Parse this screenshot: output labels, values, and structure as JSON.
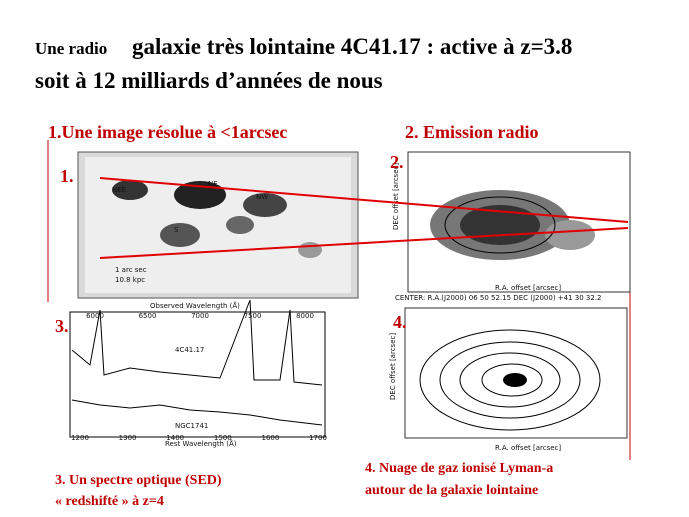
{
  "title": {
    "small": "Une radio",
    "main": "galaxie très lointaine 4C41.17 : active à z=3.8",
    "line2": "soit à 12 milliards d’années de nous"
  },
  "panels": [
    {
      "heading": "1.Une image résolue à <1arcsec",
      "label": "1.",
      "image_labels": [
        "NEE",
        "NE",
        "NW",
        "S",
        "1 arc sec",
        "10.8 kpc"
      ]
    },
    {
      "heading": "2. Emission radio",
      "label": "2.",
      "image_labels": [
        "DEC offset [arcsec]",
        "R.A. offset [arcsec]",
        "CENTER: R.A.(J2000) 06 50 52.15   DEC (J2000) +41 30 32.2"
      ]
    },
    {
      "label": "3.",
      "caption": [
        "3. Un spectre optique (SED)",
        "« redshifté » à z=4"
      ],
      "image_labels": [
        "Observed Wavelength (Å)",
        "Rest Wavelength (Å)",
        "4C41.17",
        "NGC1741"
      ],
      "top_ticks": [
        "6000",
        "6500",
        "7000",
        "7500",
        "8000"
      ],
      "bottom_ticks": [
        "1200",
        "1300",
        "1400",
        "1500",
        "1600",
        "1700"
      ]
    },
    {
      "label": "4.",
      "caption": [
        "4. Nuage de gaz ionisé  Lyman-a",
        "autour de la galaxie lointaine"
      ],
      "image_labels": [
        "DEC offset [arcsec]",
        "R.A. offset [arcsec]"
      ]
    }
  ]
}
